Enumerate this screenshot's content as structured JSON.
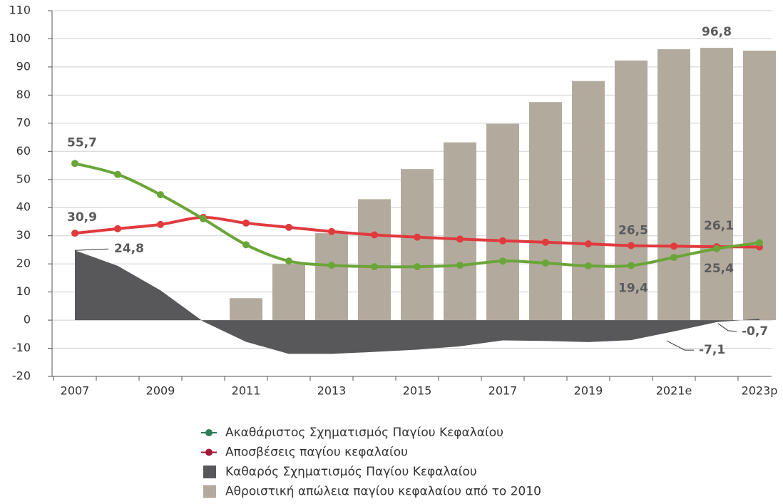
{
  "chart_data": {
    "type": "bar",
    "categories": [
      "2007",
      null,
      "2009",
      null,
      "2011",
      null,
      "2013",
      null,
      "2015",
      null,
      "2017",
      null,
      "2019",
      null,
      "2021e",
      null,
      "2023p"
    ],
    "ylim": [
      -20,
      110
    ],
    "yticks": [
      -20,
      -10,
      0,
      10,
      20,
      30,
      40,
      50,
      60,
      70,
      80,
      90,
      100,
      110
    ],
    "grid": true,
    "series": [
      {
        "name": "Ακαθάριστος Σχηματισμός Παγίου Κεφαλαίου",
        "type": "line",
        "color": "#6ba539",
        "marker_color": "#2e7d5b",
        "values": [
          55.7,
          51.8,
          44.6,
          36,
          26.8,
          21,
          19.5,
          19,
          19,
          19.5,
          21,
          20.3,
          19.3,
          19.4,
          22.3,
          25.4,
          27.5
        ],
        "value_labels": [
          "55,7",
          null,
          null,
          null,
          null,
          null,
          null,
          null,
          null,
          null,
          null,
          null,
          null,
          "19,4",
          null,
          "25,4",
          null
        ]
      },
      {
        "name": "Αποσβέσεις παγίου κεφαλαίου",
        "type": "line",
        "color": "#e03a3e",
        "marker_color": "#a3193a",
        "values": [
          30.9,
          32.5,
          34,
          36.5,
          34.5,
          33,
          31.5,
          30.3,
          29.5,
          28.8,
          28.2,
          27.7,
          27.1,
          26.5,
          26.3,
          26.1,
          26
        ],
        "value_labels": [
          "30,9",
          null,
          null,
          null,
          null,
          null,
          null,
          null,
          null,
          null,
          null,
          null,
          null,
          "26,5",
          null,
          "26,1",
          null
        ]
      },
      {
        "name": "Καθαρός Σχηματισμός Παγίου Κεφαλαίου",
        "type": "area",
        "color": "#58585a",
        "values": [
          24.8,
          19.3,
          10.6,
          -0.5,
          -7.7,
          -12,
          -12,
          -11.3,
          -10.5,
          -9.3,
          -7.2,
          -7.4,
          -7.8,
          -7.1,
          -4,
          -0.7,
          0.5
        ],
        "value_labels": [
          "24,8",
          null,
          null,
          null,
          null,
          null,
          null,
          null,
          null,
          null,
          null,
          null,
          null,
          "-7,1",
          null,
          "-0,7",
          null
        ]
      },
      {
        "name": "Αθροιστική απώλεια παγίου κεφαλαίου από το 2010",
        "type": "bar",
        "color": "#b3aa9e",
        "values": [
          null,
          null,
          null,
          null,
          7.8,
          20,
          30.9,
          43,
          53.7,
          63.2,
          69.8,
          77.5,
          85,
          92.3,
          96.3,
          96.8,
          95.8
        ],
        "value_labels": [
          null,
          null,
          null,
          null,
          null,
          null,
          null,
          null,
          null,
          null,
          null,
          null,
          null,
          null,
          null,
          "96,8",
          null
        ]
      }
    ]
  }
}
